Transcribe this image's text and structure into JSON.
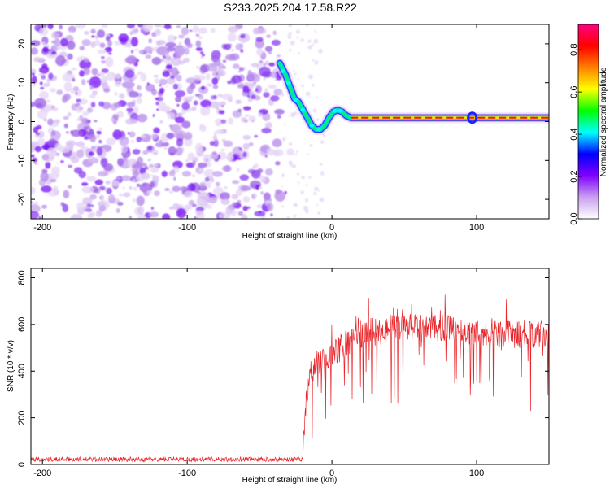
{
  "title": "S233.2025.204.17.58.R22",
  "chart_data": [
    {
      "type": "heatmap",
      "xlabel": "Height of straight line (km)",
      "ylabel": "Frequency (Hz)",
      "xlim": [
        -208,
        150
      ],
      "ylim": [
        -25,
        25
      ],
      "x_ticks": [
        -200,
        -100,
        0,
        100
      ],
      "y_ticks": [
        -20,
        -10,
        0,
        10,
        20
      ],
      "noise_region_x": [
        -208,
        -35
      ],
      "signal_trace": [
        {
          "x": -36,
          "y": 15
        },
        {
          "x": -32,
          "y": 12
        },
        {
          "x": -29,
          "y": 9
        },
        {
          "x": -26,
          "y": 6
        },
        {
          "x": -23,
          "y": 5
        },
        {
          "x": -20,
          "y": 3
        },
        {
          "x": -17,
          "y": 1
        },
        {
          "x": -14,
          "y": -1
        },
        {
          "x": -11,
          "y": -2
        },
        {
          "x": -8,
          "y": -2
        },
        {
          "x": -5,
          "y": -1
        },
        {
          "x": -2,
          "y": 1
        },
        {
          "x": 1,
          "y": 2.5
        },
        {
          "x": 4,
          "y": 3
        },
        {
          "x": 7,
          "y": 2.5
        },
        {
          "x": 10,
          "y": 1.5
        },
        {
          "x": 13,
          "y": 1
        },
        {
          "x": 20,
          "y": 1
        },
        {
          "x": 150,
          "y": 1
        }
      ],
      "colorbar": {
        "label": "Normalized spectral amplitude",
        "range": [
          0,
          0.92
        ],
        "ticks": [
          0.0,
          0.2,
          0.4,
          0.6,
          0.8
        ],
        "colors": [
          "#ffffff",
          "#c8a0f0",
          "#8000ff",
          "#0000ff",
          "#00ffff",
          "#00ff00",
          "#ffff00",
          "#ff8000",
          "#ff0000",
          "#ff0080"
        ]
      }
    },
    {
      "type": "line",
      "xlabel": "Height of straight line (km)",
      "ylabel": "SNR (10 * v/v)",
      "xlim": [
        -208,
        150
      ],
      "ylim": [
        0,
        840
      ],
      "x_ticks": [
        -200,
        -100,
        0,
        100
      ],
      "y_ticks": [
        0,
        200,
        400,
        600,
        800
      ],
      "color": "#e8242a",
      "envelope": [
        {
          "x": -208,
          "y": 22
        },
        {
          "x": -20,
          "y": 22
        },
        {
          "x": -18,
          "y": 280
        },
        {
          "x": -15,
          "y": 380
        },
        {
          "x": -10,
          "y": 430
        },
        {
          "x": 0,
          "y": 470
        },
        {
          "x": 10,
          "y": 520
        },
        {
          "x": 20,
          "y": 560
        },
        {
          "x": 30,
          "y": 580
        },
        {
          "x": 40,
          "y": 590
        },
        {
          "x": 60,
          "y": 585
        },
        {
          "x": 80,
          "y": 580
        },
        {
          "x": 100,
          "y": 570
        },
        {
          "x": 120,
          "y": 560
        },
        {
          "x": 140,
          "y": 555
        },
        {
          "x": 150,
          "y": 555
        }
      ]
    }
  ]
}
